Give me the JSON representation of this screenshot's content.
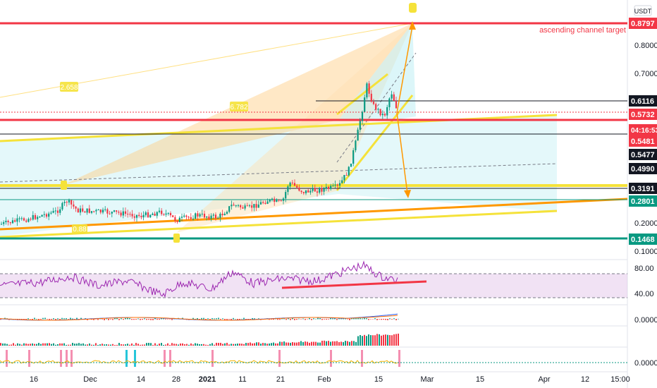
{
  "chart_data": [
    {
      "type": "line",
      "name": "price-panel",
      "currency_label": "USDT",
      "scale": "log",
      "y_ticks": [
        "0.8000",
        "0.7000",
        "0.2000",
        "0.1000"
      ],
      "ylim": [
        0.09,
        0.95
      ],
      "x_ticks": [
        "16",
        "Dec",
        "14",
        "28",
        "2021",
        "11",
        "21",
        "Feb",
        "15",
        "Mar",
        "15",
        "Apr",
        "12",
        "15:00"
      ],
      "price_tags": [
        {
          "text": "0.8797",
          "bg": "#f23645",
          "fg": "#ffffff"
        },
        {
          "text": "0.6116",
          "bg": "#131722",
          "fg": "#ffffff"
        },
        {
          "text": "0.5732",
          "bg": "#f23645",
          "fg": "#ffffff"
        },
        {
          "text": "04:16:53",
          "bg": "#f23645",
          "fg": "#ffffff"
        },
        {
          "text": "0.5481",
          "bg": "#f23645",
          "fg": "#ffffff"
        },
        {
          "text": "0.5477",
          "bg": "#131722",
          "fg": "#ffffff"
        },
        {
          "text": "0.4990",
          "bg": "#131722",
          "fg": "#ffffff"
        },
        {
          "text": "0.3191",
          "bg": "#131722",
          "fg": "#ffffff"
        },
        {
          "text": "0.2801",
          "bg": "#089981",
          "fg": "#ffffff"
        },
        {
          "text": "0.1468",
          "bg": "#089981",
          "fg": "#ffffff"
        }
      ],
      "annotations": [
        "ascending channel target",
        "2.658",
        "6.782",
        "0.88"
      ],
      "colors": {
        "red_line": "#f23645",
        "orange": "#ff9800",
        "yellow": "#f5e23a",
        "teal": "#089981",
        "cyan_fill": "#b2ebf2",
        "peach_fill": "#ffcc80"
      }
    },
    {
      "type": "line",
      "name": "rsi-panel",
      "y_ticks": [
        "80.00",
        "40.00"
      ],
      "ylim": [
        20,
        95
      ],
      "band": [
        40,
        70
      ],
      "colors": {
        "line": "#9c27b0",
        "band": "#e1bee7",
        "trendline": "#f23645"
      }
    },
    {
      "type": "line",
      "name": "macd-panel",
      "y_ticks": [
        "0.0000"
      ],
      "series": [
        {
          "color": "#2962ff"
        },
        {
          "color": "#ff6d00"
        }
      ]
    },
    {
      "type": "bar",
      "name": "momentum-panel",
      "y_ticks": [
        "0.0000"
      ]
    }
  ]
}
